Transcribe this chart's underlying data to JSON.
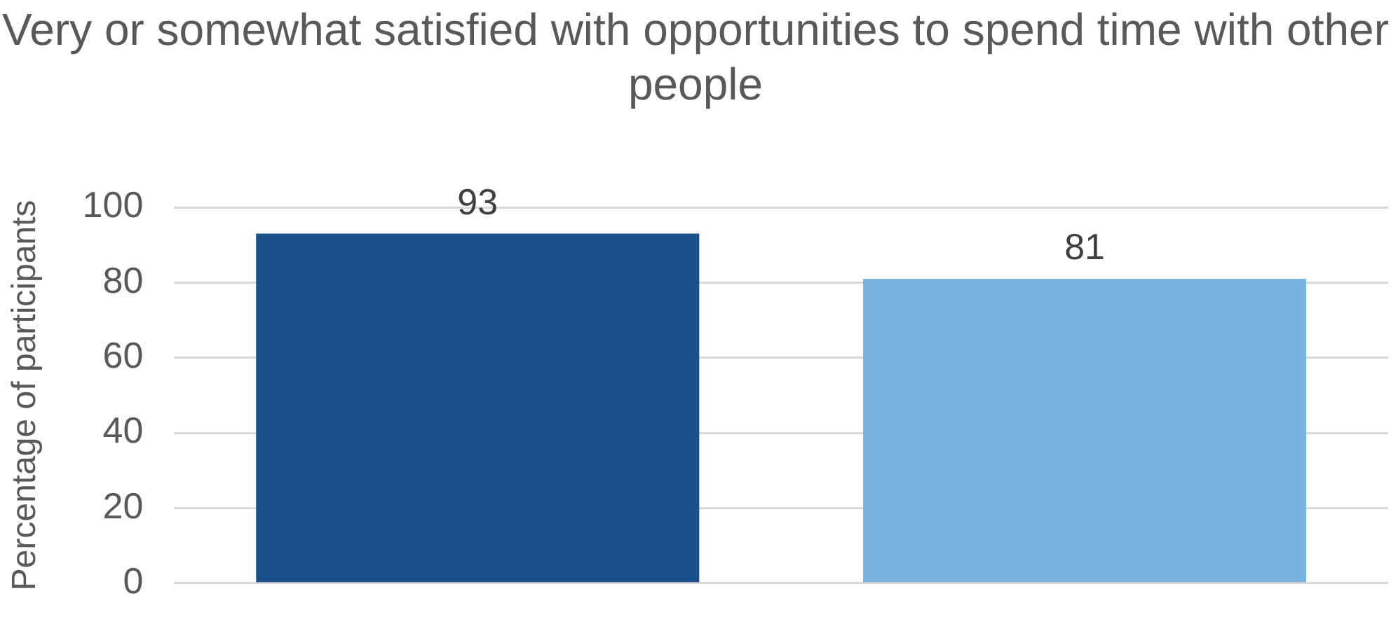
{
  "chart_data": {
    "type": "bar",
    "title": "Very or somewhat satisfied with opportunities to spend time with other people",
    "ylabel": "Percentage of participants",
    "categories": [
      null
    ],
    "series": [
      {
        "color": "#1b4f8a",
        "values": [
          93
        ]
      },
      {
        "color": "#7ab3df",
        "values": [
          81
        ]
      }
    ],
    "ylim": [
      0,
      100
    ],
    "yticks": [
      0,
      20,
      40,
      60,
      80,
      100
    ],
    "grid": "y",
    "data_labels": true,
    "legend": false
  }
}
